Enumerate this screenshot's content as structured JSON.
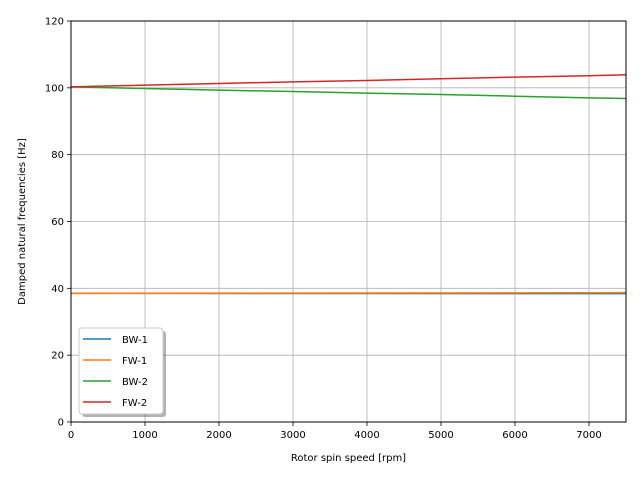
{
  "chart_data": {
    "type": "line",
    "xlabel": "Rotor spin speed [rpm]",
    "ylabel": "Damped natural frequencies [Hz]",
    "xlim": [
      0,
      7500
    ],
    "ylim": [
      0,
      120
    ],
    "xticks": [
      0,
      1000,
      2000,
      3000,
      4000,
      5000,
      6000,
      7000
    ],
    "yticks": [
      0,
      20,
      40,
      60,
      80,
      100,
      120
    ],
    "grid": true,
    "legend_position": "lower-left",
    "series": [
      {
        "name": "BW-1",
        "color": "#1f77b4",
        "x": [
          0,
          7500
        ],
        "y": [
          38.5,
          38.4
        ]
      },
      {
        "name": "FW-1",
        "color": "#ff7f0e",
        "x": [
          0,
          7500
        ],
        "y": [
          38.5,
          38.7
        ]
      },
      {
        "name": "BW-2",
        "color": "#2ca02c",
        "x": [
          0,
          1000,
          2000,
          3000,
          4000,
          5000,
          6000,
          7000,
          7500
        ],
        "y": [
          100.3,
          99.8,
          99.3,
          98.9,
          98.4,
          98.0,
          97.5,
          97.0,
          96.8
        ]
      },
      {
        "name": "FW-2",
        "color": "#d62728",
        "x": [
          0,
          1000,
          2000,
          3000,
          4000,
          5000,
          6000,
          7000,
          7500
        ],
        "y": [
          100.3,
          100.8,
          101.3,
          101.8,
          102.2,
          102.7,
          103.2,
          103.6,
          103.9
        ]
      }
    ]
  }
}
